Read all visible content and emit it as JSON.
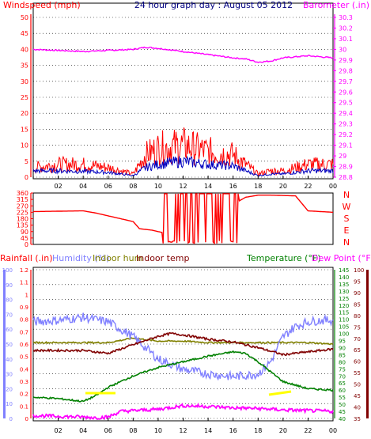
{
  "title": "24 hour graph day : August 05 2012",
  "x_ticks": [
    "02",
    "04",
    "06",
    "08",
    "10",
    "12",
    "14",
    "16",
    "18",
    "20",
    "22",
    "00"
  ],
  "colors": {
    "wind": "#ff0000",
    "gust": "#0000c0",
    "baro": "#ff00ff",
    "dir": "#ff0000",
    "rain": "#ff0000",
    "humidity": "#8080ff",
    "indoor_hum": "#808000",
    "indoor_temp": "#800000",
    "temperature": "#008000",
    "dewpoint": "#ff00ff",
    "title": "#000080",
    "grid": "#000000",
    "highlight": "#ffff00"
  },
  "chart_data": [
    {
      "type": "line",
      "name": "wind_baro",
      "title": "24 hour graph day : August 05 2012",
      "left_axis_label": "Windspeed (mph)",
      "right_axis_label": "Barometer (.in)",
      "left_ticks": [
        "0",
        "5",
        "10",
        "15",
        "20",
        "25",
        "30",
        "35",
        "40",
        "45",
        "50"
      ],
      "right_ticks": [
        "28.8",
        "28.9",
        "29",
        "29.1",
        "29.2",
        "29.3",
        "29.4",
        "29.5",
        "29.6",
        "29.7",
        "29.8",
        "29.9",
        "30",
        "30.1",
        "30.2",
        "30.3"
      ],
      "ylim_left": [
        0,
        50
      ],
      "ylim_right": [
        28.8,
        30.3
      ],
      "x_hours": [
        0,
        24
      ],
      "series": [
        {
          "key": "barometer",
          "x": [
            0,
            2,
            4,
            6,
            8,
            9,
            10,
            12,
            14,
            16,
            17,
            18,
            19,
            20,
            21,
            22,
            23,
            24
          ],
          "values": [
            30.0,
            29.99,
            29.98,
            29.99,
            30.0,
            30.02,
            30.01,
            29.98,
            29.95,
            29.92,
            29.91,
            29.88,
            29.89,
            29.92,
            29.93,
            29.94,
            29.93,
            29.92
          ]
        },
        {
          "key": "wind_avg",
          "x": [
            0,
            2,
            4,
            6,
            7,
            8,
            9,
            10,
            12,
            14,
            16,
            17,
            18,
            19,
            20,
            22,
            24
          ],
          "values": [
            2,
            2,
            1.8,
            1.5,
            1,
            0.5,
            3,
            4,
            5,
            4,
            3.5,
            2,
            0.5,
            1,
            1,
            2,
            2
          ]
        },
        {
          "key": "wind_gust",
          "x": [
            0,
            2,
            4,
            6,
            7,
            8,
            9,
            10,
            12,
            14,
            16,
            17,
            18,
            19,
            20,
            22,
            24
          ],
          "values": [
            3,
            4,
            4,
            3,
            2,
            1,
            7,
            9,
            10,
            8,
            7,
            4,
            1,
            2,
            2,
            4,
            4
          ]
        }
      ]
    },
    {
      "type": "line",
      "name": "wind_direction",
      "left_ticks": [
        "0",
        "45",
        "90",
        "135",
        "180",
        "225",
        "270",
        "315",
        "360"
      ],
      "right_labels": [
        "N",
        "W",
        "S",
        "E",
        "N"
      ],
      "ylim": [
        0,
        360
      ],
      "series": [
        {
          "key": "direction",
          "x": [
            0,
            4,
            5,
            6,
            8,
            8.5,
            9.5,
            10.5,
            11,
            13,
            15,
            16,
            17,
            18,
            19,
            21,
            22,
            23,
            24
          ],
          "values": [
            230,
            235,
            220,
            200,
            160,
            110,
            100,
            80,
            120,
            250,
            270,
            280,
            330,
            345,
            345,
            340,
            235,
            230,
            225
          ]
        }
      ]
    },
    {
      "type": "line",
      "name": "rain_humidity_temp",
      "labels": [
        "Rainfall (.in)",
        "Humidity (%)",
        "Indoor hum",
        "Indoor temp",
        "Temperature (°F)",
        "Dew Point (°F)"
      ],
      "rain_ticks": [
        "0",
        "0.1",
        "0.2",
        "0.3",
        "0.4",
        "0.5",
        "0.6",
        "0.7",
        "0.8",
        "0.9",
        "1",
        "1.1",
        "1.2"
      ],
      "hum_ticks": [
        "0",
        "10",
        "20",
        "30",
        "40",
        "50",
        "60",
        "70",
        "80",
        "90",
        "100"
      ],
      "temp_ticks": [
        "40",
        "45",
        "50",
        "55",
        "60",
        "65",
        "70",
        "75",
        "80",
        "85",
        "90",
        "95",
        "100",
        "105",
        "110",
        "115",
        "120",
        "125",
        "130",
        "135",
        "140",
        "145"
      ],
      "dew_ticks": [
        "35",
        "40",
        "45",
        "50",
        "55",
        "60",
        "65",
        "70",
        "75",
        "80",
        "85",
        "90",
        "95",
        "100"
      ],
      "ylim_humidity": [
        0,
        100
      ],
      "ylim_temperature": [
        40,
        145
      ],
      "series": [
        {
          "key": "humidity",
          "x": [
            0,
            2,
            4,
            6,
            8,
            10,
            12,
            14,
            16,
            18,
            19,
            20,
            21,
            22,
            23,
            24
          ],
          "values": [
            65,
            66,
            68,
            65,
            55,
            40,
            33,
            30,
            28,
            30,
            38,
            55,
            62,
            65,
            66,
            66
          ]
        },
        {
          "key": "indoor_humidity",
          "x": [
            0,
            2,
            4,
            6,
            8,
            10,
            12,
            14,
            16,
            18,
            20,
            22,
            24
          ],
          "values": [
            51,
            51,
            51,
            51,
            54,
            52,
            52,
            51,
            51,
            51,
            51,
            51,
            50
          ]
        },
        {
          "key": "indoor_temp",
          "x": [
            0,
            2,
            4,
            6,
            8,
            10,
            11,
            12,
            14,
            16,
            18,
            20,
            22,
            24
          ],
          "values": [
            88,
            88,
            88,
            86,
            92,
            98,
            100,
            99,
            96,
            94,
            90,
            85,
            87,
            89
          ]
        },
        {
          "key": "temperature",
          "x": [
            0,
            2,
            4,
            5,
            6,
            8,
            10,
            12,
            14,
            16,
            17,
            18,
            20,
            22,
            24
          ],
          "values": [
            55,
            54,
            52,
            56,
            62,
            70,
            76,
            80,
            84,
            87,
            86,
            80,
            66,
            61,
            60
          ]
        },
        {
          "key": "dewpoint",
          "x": [
            0,
            2,
            4,
            5,
            6,
            7,
            8,
            10,
            12,
            14,
            16,
            18,
            20,
            22,
            24
          ],
          "values": [
            42,
            41.5,
            41,
            40.5,
            41,
            45,
            45.5,
            46.5,
            49,
            48.5,
            47.5,
            47,
            46,
            45.5,
            45
          ]
        }
      ]
    }
  ]
}
